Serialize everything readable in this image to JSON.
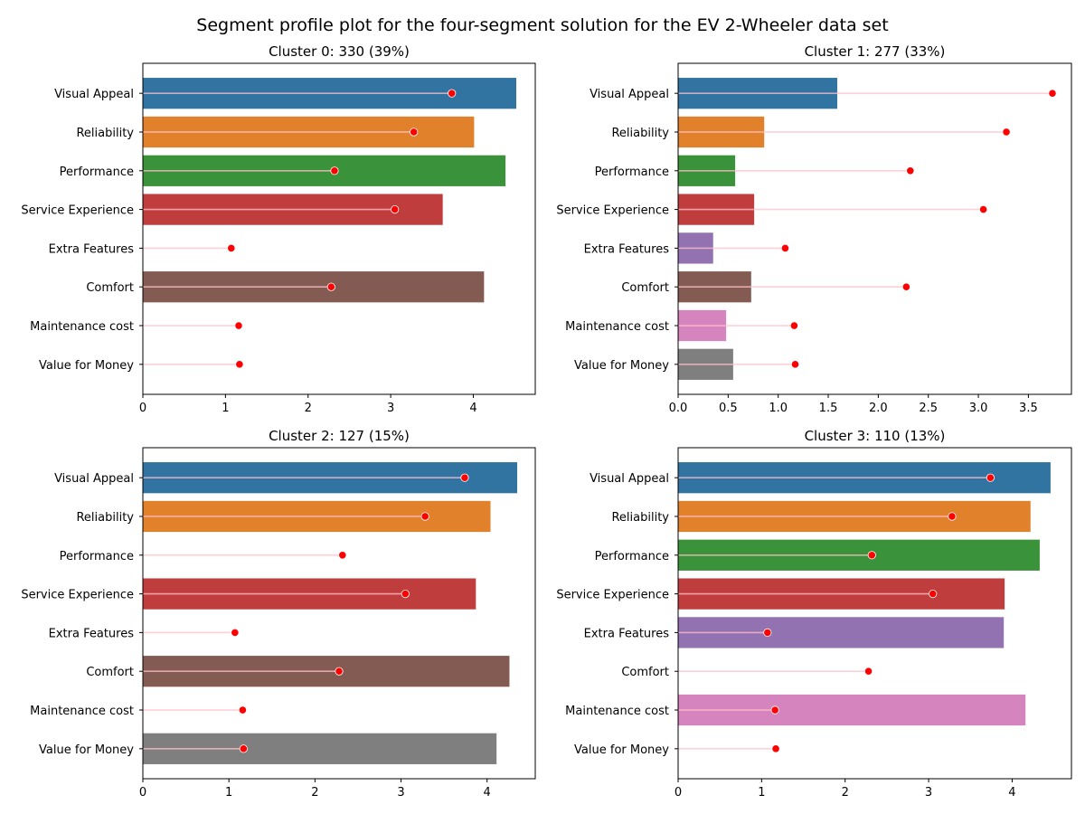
{
  "suptitle": "Segment profile plot for the four-segment solution for the EV 2-Wheeler data set",
  "colors": {
    "Visual Appeal": "#3274a1",
    "Reliability": "#e1812c",
    "Performance": "#3a923a",
    "Service Experience": "#c03d3e",
    "Extra Features": "#9372b2",
    "Comfort": "#845b53",
    "Maintenance cost": "#d684bd",
    "Value for Money": "#7f7f7f",
    "marker": "#ff0000",
    "lollipop_line": "#ffc0cb"
  },
  "chart_data": [
    {
      "type": "bar",
      "orientation": "horizontal",
      "title": "Cluster 0: 330 (39%)",
      "categories": [
        "Visual Appeal",
        "Reliability",
        "Performance",
        "Service Experience",
        "Extra Features",
        "Comfort",
        "Maintenance cost",
        "Value for Money"
      ],
      "series": [
        {
          "values": [
            4.52,
            4.01,
            4.39,
            3.63,
            0,
            4.13,
            0,
            0
          ]
        },
        {
          "values": [
            3.74,
            3.28,
            2.32,
            3.05,
            1.07,
            2.28,
            1.16,
            1.17
          ]
        }
      ],
      "xlim": [
        0,
        4.75
      ],
      "xticks": [
        "0",
        "1",
        "2",
        "3",
        "4"
      ],
      "xtick_values": [
        0,
        1,
        2,
        3,
        4
      ],
      "grid": false
    },
    {
      "type": "bar",
      "orientation": "horizontal",
      "title": "Cluster 1: 277 (33%)",
      "categories": [
        "Visual Appeal",
        "Reliability",
        "Performance",
        "Service Experience",
        "Extra Features",
        "Comfort",
        "Maintenance cost",
        "Value for Money"
      ],
      "series": [
        {
          "values": [
            1.59,
            0.86,
            0.57,
            0.76,
            0.35,
            0.73,
            0.48,
            0.55
          ]
        },
        {
          "values": [
            3.74,
            3.28,
            2.32,
            3.05,
            1.07,
            2.28,
            1.16,
            1.17
          ]
        }
      ],
      "xlim": [
        0,
        3.93
      ],
      "xticks": [
        "0.0",
        "0.5",
        "1.0",
        "1.5",
        "2.0",
        "2.5",
        "3.0",
        "3.5"
      ],
      "xtick_values": [
        0,
        0.5,
        1.0,
        1.5,
        2.0,
        2.5,
        3.0,
        3.5
      ],
      "grid": false
    },
    {
      "type": "bar",
      "orientation": "horizontal",
      "title": "Cluster 2: 127 (15%)",
      "categories": [
        "Visual Appeal",
        "Reliability",
        "Performance",
        "Service Experience",
        "Extra Features",
        "Comfort",
        "Maintenance cost",
        "Value for Money"
      ],
      "series": [
        {
          "values": [
            4.35,
            4.04,
            0,
            3.87,
            0,
            4.26,
            0,
            4.11
          ]
        },
        {
          "values": [
            3.74,
            3.28,
            2.32,
            3.05,
            1.07,
            2.28,
            1.16,
            1.17
          ]
        }
      ],
      "xlim": [
        0,
        4.56
      ],
      "xticks": [
        "0",
        "1",
        "2",
        "3",
        "4"
      ],
      "xtick_values": [
        0,
        1,
        2,
        3,
        4
      ],
      "grid": false
    },
    {
      "type": "bar",
      "orientation": "horizontal",
      "title": "Cluster 3: 110 (13%)",
      "categories": [
        "Visual Appeal",
        "Reliability",
        "Performance",
        "Service Experience",
        "Extra Features",
        "Comfort",
        "Maintenance cost",
        "Value for Money"
      ],
      "series": [
        {
          "values": [
            4.46,
            4.22,
            4.33,
            3.91,
            3.9,
            0,
            4.16,
            0
          ]
        },
        {
          "values": [
            3.74,
            3.28,
            2.32,
            3.05,
            1.07,
            2.28,
            1.16,
            1.17
          ]
        }
      ],
      "xlim": [
        0,
        4.71
      ],
      "xticks": [
        "0",
        "1",
        "2",
        "3",
        "4"
      ],
      "xtick_values": [
        0,
        1,
        2,
        3,
        4
      ],
      "grid": false
    }
  ]
}
